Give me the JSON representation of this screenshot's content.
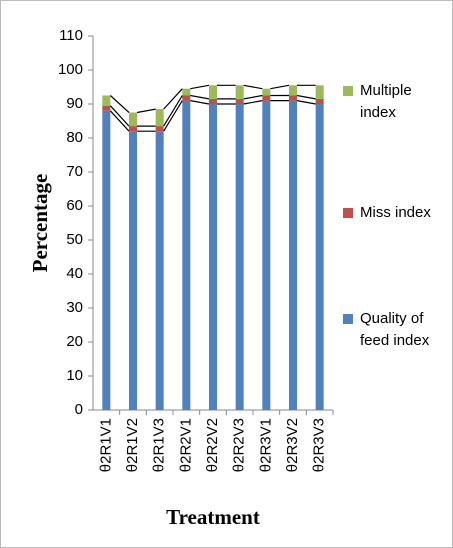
{
  "chart_data": {
    "type": "bar",
    "stacked": true,
    "y_label": "Percentage",
    "x_label": "Treatment",
    "categories": [
      "θ2R1V1",
      "θ2R1V2",
      "θ2R1V3",
      "θ2R2V1",
      "θ2R2V2",
      "θ2R2V3",
      "θ2R3V1",
      "θ2R3V2",
      "θ2R3V3"
    ],
    "series": [
      {
        "name": "Quality of feed index",
        "color": "#4f81bd",
        "values": [
          88,
          82,
          82,
          91,
          90,
          90,
          91,
          91,
          90
        ]
      },
      {
        "name": "Miss index",
        "color": "#c0504d",
        "values": [
          1.5,
          1.5,
          1.5,
          1.5,
          1.5,
          1.5,
          1.5,
          1.5,
          1.5
        ]
      },
      {
        "name": "Multiple index",
        "color": "#9bbb59",
        "values": [
          3,
          4,
          5,
          2,
          4,
          4,
          2,
          3,
          4
        ]
      }
    ],
    "ylim": [
      0,
      110
    ],
    "yticks": [
      0,
      10,
      20,
      30,
      40,
      50,
      60,
      70,
      80,
      90,
      100,
      110
    ],
    "legend": "right"
  }
}
